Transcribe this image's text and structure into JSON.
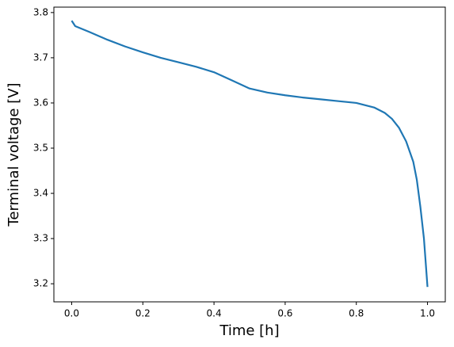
{
  "chart_data": {
    "type": "line",
    "xlabel": "Time [h]",
    "ylabel": "Terminal voltage [V]",
    "x": [
      0,
      0.01,
      0.05,
      0.1,
      0.15,
      0.2,
      0.25,
      0.3,
      0.35,
      0.4,
      0.45,
      0.5,
      0.55,
      0.6,
      0.65,
      0.7,
      0.75,
      0.8,
      0.85,
      0.88,
      0.9,
      0.92,
      0.94,
      0.96,
      0.97,
      0.98,
      0.99,
      1.0
    ],
    "series": [
      {
        "name": "Terminal voltage",
        "color": "#1f77b4",
        "values": [
          3.782,
          3.77,
          3.757,
          3.74,
          3.725,
          3.712,
          3.7,
          3.69,
          3.68,
          3.668,
          3.65,
          3.632,
          3.623,
          3.617,
          3.612,
          3.608,
          3.604,
          3.6,
          3.59,
          3.578,
          3.565,
          3.545,
          3.515,
          3.47,
          3.43,
          3.37,
          3.3,
          3.193
        ]
      }
    ],
    "xlim": [
      -0.05,
      1.05
    ],
    "ylim": [
      3.16,
      3.812
    ],
    "xticks": [
      {
        "value": 0,
        "label": "0.0"
      },
      0.2,
      0.4,
      0.6,
      0.8,
      {
        "value": 1,
        "label": "1.0"
      }
    ],
    "yticks": [
      3.2,
      3.3,
      3.4,
      3.5,
      3.6,
      3.7,
      3.8
    ],
    "grid": false
  }
}
